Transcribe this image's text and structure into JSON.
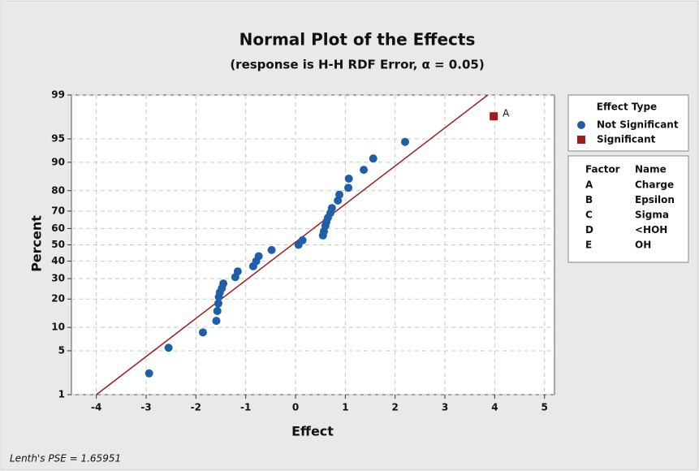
{
  "chart_data": {
    "type": "scatter",
    "title": "Normal Plot of the Effects",
    "subtitle": "(response is H-H RDF Error, α = 0.05)",
    "x_label": "Effect",
    "y_label": "Percent",
    "yscale": "normal",
    "grid": true,
    "xlim": [
      -4.5,
      5.2
    ],
    "xticks": [
      -4,
      -3,
      -2,
      -1,
      0,
      1,
      2,
      3,
      4,
      5
    ],
    "ylim": [
      1,
      99
    ],
    "yticks": [
      1,
      5,
      10,
      20,
      30,
      40,
      50,
      60,
      70,
      80,
      90,
      95,
      99
    ],
    "legend_title": "Effect Type",
    "series": [
      {
        "name": "Not Significant",
        "color": "#1f5fa8",
        "marker": "circle",
        "x": [
          -2.94,
          -2.55,
          -1.86,
          -1.59,
          -1.57,
          -1.55,
          -1.54,
          -1.52,
          -1.48,
          -1.45,
          -1.21,
          -1.16,
          -0.85,
          -0.79,
          -0.74,
          -0.48,
          0.06,
          0.14,
          0.55,
          0.57,
          0.6,
          0.62,
          0.65,
          0.7,
          0.73,
          0.85,
          0.88,
          1.06,
          1.07,
          1.37,
          1.56,
          2.2
        ],
        "values": [
          2.3,
          5.5,
          8.7,
          11.9,
          15.2,
          18.1,
          20.9,
          23,
          25,
          27.4,
          30.8,
          34,
          37,
          40,
          43,
          46.8,
          50,
          52.8,
          55.8,
          58.3,
          61.7,
          64,
          66.3,
          69,
          71.6,
          75.4,
          78.2,
          81.2,
          84.8,
          87.8,
          91,
          94.5
        ]
      },
      {
        "name": "Significant",
        "color": "#a31c1c",
        "marker": "square",
        "x": [
          3.98
        ],
        "values": [
          97.7
        ],
        "point_labels": [
          "A"
        ]
      }
    ],
    "fit_line": {
      "color": "#a31c1c",
      "x": [
        -4,
        3.86
      ],
      "y": [
        1,
        99
      ]
    },
    "factor_table": {
      "columns": [
        "Factor",
        "Name"
      ],
      "rows": [
        [
          "A",
          "Charge"
        ],
        [
          "B",
          "Epsilon"
        ],
        [
          "C",
          "Sigma"
        ],
        [
          "D",
          "<HOH"
        ],
        [
          "E",
          "OH"
        ]
      ]
    },
    "footnote": "Lenth's PSE = 1.65951"
  }
}
